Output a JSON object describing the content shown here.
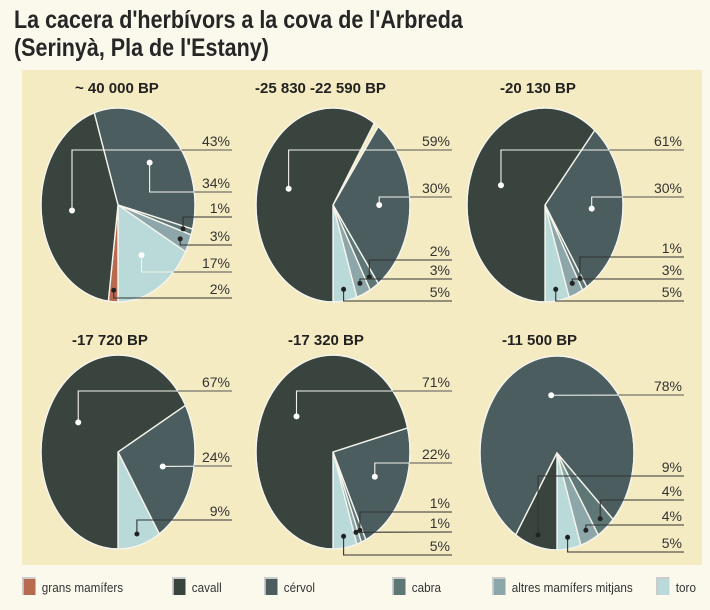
{
  "title_line1": "La cacera d'herbívors a la cova de l'Arbreda",
  "title_line2": "(Serinyà, Pla de l'Estany)",
  "chart_data": {
    "type": "pie",
    "title": "La cacera d'herbívors a la cova de l'Arbreda (Serinyà, Pla de l'Estany)",
    "legend_position": "bottom",
    "categories": [
      {
        "key": "grans",
        "label": "grans mamífers",
        "color": "#b86a50"
      },
      {
        "key": "cavall",
        "label": "cavall",
        "color": "#39443f"
      },
      {
        "key": "cervol",
        "label": "cérvol",
        "color": "#4b5d5f"
      },
      {
        "key": "cabra",
        "label": "cabra",
        "color": "#5e7675"
      },
      {
        "key": "altres",
        "label": "altres mamífers mitjans",
        "color": "#8ca6a9"
      },
      {
        "key": "toro",
        "label": "toro",
        "color": "#b9dad9"
      }
    ],
    "pies": [
      {
        "title": "~ 40 000 BP",
        "slices": [
          {
            "key": "cavall",
            "value": 43,
            "label": "43%"
          },
          {
            "key": "cervol",
            "value": 34,
            "label": "34%"
          },
          {
            "key": "cabra",
            "value": 1,
            "label": "1%"
          },
          {
            "key": "altres",
            "value": 3,
            "label": "3%"
          },
          {
            "key": "toro",
            "value": 17,
            "label": "17%"
          },
          {
            "key": "grans",
            "value": 2,
            "label": "2%"
          }
        ]
      },
      {
        "title": "-25 830  -22 590 BP",
        "slices": [
          {
            "key": "cavall",
            "value": 59,
            "label": "59%"
          },
          {
            "key": "cervol",
            "value": 30,
            "label": "30%"
          },
          {
            "key": "cabra",
            "value": 2,
            "label": "2%"
          },
          {
            "key": "altres",
            "value": 3,
            "label": "3%"
          },
          {
            "key": "toro",
            "value": 5,
            "label": "5%"
          }
        ]
      },
      {
        "title": "-20 130 BP",
        "slices": [
          {
            "key": "cavall",
            "value": 61,
            "label": "61%"
          },
          {
            "key": "cervol",
            "value": 30,
            "label": "30%"
          },
          {
            "key": "cabra",
            "value": 1,
            "label": "1%"
          },
          {
            "key": "altres",
            "value": 3,
            "label": "3%"
          },
          {
            "key": "toro",
            "value": 5,
            "label": "5%"
          }
        ]
      },
      {
        "title": "-17 720 BP",
        "slices": [
          {
            "key": "cavall",
            "value": 67,
            "label": "67%"
          },
          {
            "key": "cervol",
            "value": 24,
            "label": "24%"
          },
          {
            "key": "toro",
            "value": 9,
            "label": "9%"
          }
        ]
      },
      {
        "title": "-17 320 BP",
        "slices": [
          {
            "key": "cavall",
            "value": 71,
            "label": "71%"
          },
          {
            "key": "cervol",
            "value": 22,
            "label": "22%"
          },
          {
            "key": "cabra",
            "value": 1,
            "label": "1%"
          },
          {
            "key": "altres",
            "value": 1,
            "label": "1%"
          },
          {
            "key": "toro",
            "value": 5,
            "label": "5%"
          }
        ]
      },
      {
        "title": "-11 500 BP",
        "slices": [
          {
            "key": "cervol",
            "value": 78,
            "label": "78%"
          },
          {
            "key": "cavall",
            "value": 9,
            "label": "9%"
          },
          {
            "key": "cabra",
            "value": 4,
            "label": "4%"
          },
          {
            "key": "altres",
            "value": 4,
            "label": "4%"
          },
          {
            "key": "toro",
            "value": 5,
            "label": "5%"
          }
        ]
      }
    ]
  }
}
